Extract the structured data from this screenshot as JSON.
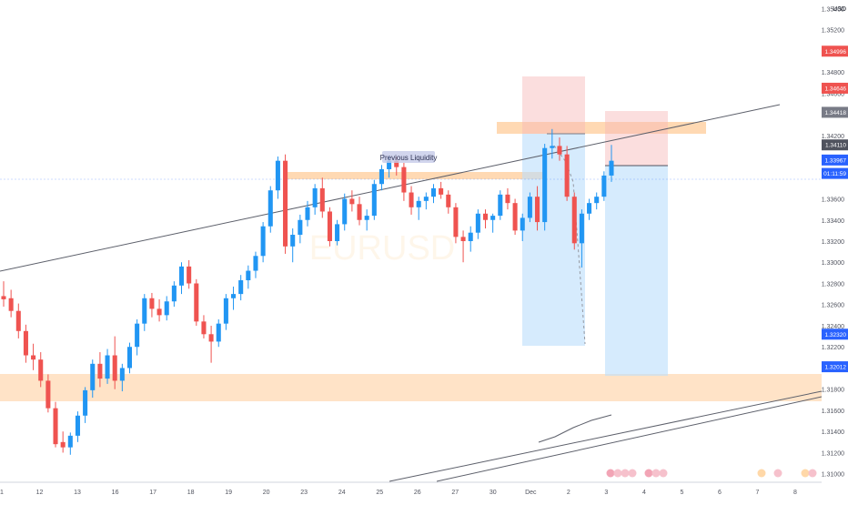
{
  "chart_data": {
    "type": "candlestick",
    "currency": "USD",
    "x_ticks": [
      "1",
      "12",
      "13",
      "16",
      "17",
      "18",
      "19",
      "20",
      "23",
      "24",
      "25",
      "26",
      "27",
      "30",
      "Dec",
      "2",
      "3",
      "4",
      "5",
      "6",
      "7",
      "8"
    ],
    "y_ticks": [
      "1.35400",
      "1.35200",
      "1.34800",
      "1.34600",
      "1.34200",
      "1.33600",
      "1.33400",
      "1.33200",
      "1.33000",
      "1.32800",
      "1.32600",
      "1.32400",
      "1.32200",
      "1.31800",
      "1.31600",
      "1.31400",
      "1.31200",
      "1.31000"
    ],
    "ylim": [
      1.3092,
      1.3548
    ],
    "price_tags": [
      {
        "label": "1.34996",
        "value": 1.34996,
        "color": "#ef5350"
      },
      {
        "label": "1.34646",
        "value": 1.34646,
        "color": "#ef5350"
      },
      {
        "label": "1.34418",
        "value": 1.34418,
        "color": "#787b86"
      },
      {
        "label": "1.34110",
        "value": 1.3411,
        "color": "#50535e"
      },
      {
        "label": "1.33967",
        "value": 1.33967,
        "color": "#2962ff"
      },
      {
        "label": "01:11:59",
        "value": 1.3384,
        "color": "#2962ff"
      },
      {
        "label": "1.32320",
        "value": 1.3232,
        "color": "#2962ff"
      },
      {
        "label": "1.32012",
        "value": 1.32012,
        "color": "#2962ff"
      }
    ],
    "annotations": {
      "liquidity_label": "Previous Liquidity"
    },
    "candles": [
      [
        1.3268,
        1.3282,
        1.3258,
        1.3265
      ],
      [
        1.3266,
        1.3274,
        1.3248,
        1.3254
      ],
      [
        1.3254,
        1.3261,
        1.3228,
        1.3235
      ],
      [
        1.3235,
        1.3241,
        1.3205,
        1.3212
      ],
      [
        1.3212,
        1.3223,
        1.3198,
        1.3208
      ],
      [
        1.3208,
        1.3215,
        1.3182,
        1.3188
      ],
      [
        1.3188,
        1.3194,
        1.3158,
        1.3162
      ],
      [
        1.3162,
        1.3168,
        1.3125,
        1.3128
      ],
      [
        1.313,
        1.314,
        1.312,
        1.3125
      ],
      [
        1.3125,
        1.3139,
        1.3118,
        1.3136
      ],
      [
        1.3136,
        1.3159,
        1.313,
        1.3155
      ],
      [
        1.3155,
        1.3182,
        1.3148,
        1.3179
      ],
      [
        1.3179,
        1.3208,
        1.3172,
        1.3204
      ],
      [
        1.3204,
        1.3215,
        1.3182,
        1.319
      ],
      [
        1.319,
        1.3218,
        1.3185,
        1.3212
      ],
      [
        1.3212,
        1.323,
        1.318,
        1.3188
      ],
      [
        1.3188,
        1.3204,
        1.3178,
        1.32
      ],
      [
        1.32,
        1.3224,
        1.3195,
        1.322
      ],
      [
        1.322,
        1.3246,
        1.3212,
        1.3242
      ],
      [
        1.3242,
        1.327,
        1.3235,
        1.3266
      ],
      [
        1.3266,
        1.3271,
        1.3248,
        1.3256
      ],
      [
        1.3256,
        1.3265,
        1.3244,
        1.325
      ],
      [
        1.325,
        1.3268,
        1.3245,
        1.3263
      ],
      [
        1.3263,
        1.3282,
        1.3258,
        1.3278
      ],
      [
        1.3278,
        1.33,
        1.327,
        1.3296
      ],
      [
        1.3296,
        1.3302,
        1.3275,
        1.328
      ],
      [
        1.328,
        1.3284,
        1.324,
        1.3244
      ],
      [
        1.3244,
        1.325,
        1.3228,
        1.3232
      ],
      [
        1.3232,
        1.324,
        1.3205,
        1.3225
      ],
      [
        1.3225,
        1.3246,
        1.322,
        1.3242
      ],
      [
        1.3242,
        1.327,
        1.3236,
        1.3266
      ],
      [
        1.3266,
        1.3277,
        1.3255,
        1.327
      ],
      [
        1.327,
        1.3288,
        1.3264,
        1.3283
      ],
      [
        1.3283,
        1.3297,
        1.3275,
        1.3292
      ],
      [
        1.3292,
        1.331,
        1.3285,
        1.3306
      ],
      [
        1.3306,
        1.3338,
        1.33,
        1.3334
      ],
      [
        1.3334,
        1.3372,
        1.3328,
        1.3368
      ],
      [
        1.3368,
        1.34,
        1.336,
        1.3396
      ],
      [
        1.3396,
        1.3402,
        1.3308,
        1.3315
      ],
      [
        1.3315,
        1.3332,
        1.33,
        1.3326
      ],
      [
        1.3326,
        1.3345,
        1.3318,
        1.334
      ],
      [
        1.334,
        1.3358,
        1.3334,
        1.3352
      ],
      [
        1.3352,
        1.3374,
        1.3345,
        1.337
      ],
      [
        1.337,
        1.338,
        1.3342,
        1.3348
      ],
      [
        1.3348,
        1.3352,
        1.3315,
        1.332
      ],
      [
        1.332,
        1.334,
        1.3316,
        1.3336
      ],
      [
        1.3336,
        1.3365,
        1.333,
        1.336
      ],
      [
        1.336,
        1.3368,
        1.3348,
        1.3355
      ],
      [
        1.3355,
        1.3362,
        1.3335,
        1.334
      ],
      [
        1.334,
        1.335,
        1.333,
        1.3344
      ],
      [
        1.3344,
        1.3378,
        1.334,
        1.3374
      ],
      [
        1.3374,
        1.3392,
        1.3368,
        1.3388
      ],
      [
        1.3388,
        1.34,
        1.338,
        1.3396
      ],
      [
        1.3396,
        1.34,
        1.3382,
        1.339
      ],
      [
        1.339,
        1.3394,
        1.3358,
        1.3366
      ],
      [
        1.3366,
        1.3372,
        1.3345,
        1.3352
      ],
      [
        1.3352,
        1.3362,
        1.334,
        1.3358
      ],
      [
        1.3358,
        1.3366,
        1.335,
        1.3362
      ],
      [
        1.3362,
        1.3374,
        1.3356,
        1.337
      ],
      [
        1.337,
        1.3376,
        1.336,
        1.3364
      ],
      [
        1.3364,
        1.3368,
        1.3346,
        1.3352
      ],
      [
        1.3352,
        1.3356,
        1.3318,
        1.3324
      ],
      [
        1.3324,
        1.333,
        1.33,
        1.332
      ],
      [
        1.332,
        1.3334,
        1.331,
        1.3328
      ],
      [
        1.3328,
        1.335,
        1.3322,
        1.3346
      ],
      [
        1.3346,
        1.335,
        1.3332,
        1.334
      ],
      [
        1.334,
        1.3346,
        1.3328,
        1.3344
      ],
      [
        1.3344,
        1.3368,
        1.334,
        1.3364
      ],
      [
        1.3364,
        1.337,
        1.335,
        1.3356
      ],
      [
        1.3356,
        1.336,
        1.3326,
        1.333
      ],
      [
        1.333,
        1.3346,
        1.332,
        1.3342
      ],
      [
        1.3342,
        1.3366,
        1.3338,
        1.3362
      ],
      [
        1.3362,
        1.3372,
        1.333,
        1.3338
      ],
      [
        1.3338,
        1.3412,
        1.333,
        1.3408
      ],
      [
        1.3408,
        1.3426,
        1.3398,
        1.341
      ],
      [
        1.341,
        1.3418,
        1.3396,
        1.3402
      ],
      [
        1.3402,
        1.341,
        1.3358,
        1.3362
      ],
      [
        1.3362,
        1.3366,
        1.3312,
        1.3318
      ],
      [
        1.3318,
        1.335,
        1.3295,
        1.3346
      ],
      [
        1.3346,
        1.336,
        1.334,
        1.3356
      ],
      [
        1.3356,
        1.3366,
        1.335,
        1.3362
      ],
      [
        1.3362,
        1.3386,
        1.3358,
        1.3382
      ],
      [
        1.3382,
        1.3411,
        1.3376,
        1.3396
      ]
    ]
  },
  "watermark": "EURUSD"
}
